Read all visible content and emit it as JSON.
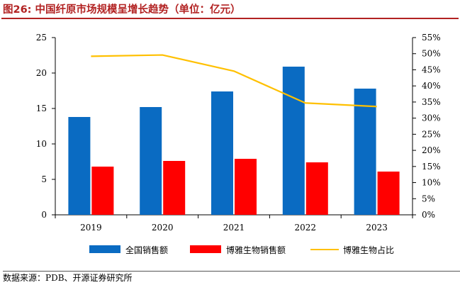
{
  "header": {
    "figure_label": "图26:",
    "title_text": "中国纤原市场规模呈增长趋势（单位：亿元）"
  },
  "source_note": "数据来源：PDB、开源证券研究所",
  "chart_data": {
    "type": "bar",
    "title": "中国纤原市场规模呈增长趋势（单位：亿元）",
    "categories": [
      "2019",
      "2020",
      "2021",
      "2022",
      "2023"
    ],
    "series": [
      {
        "name": "全国销售额",
        "type": "bar",
        "axis": "left",
        "color": "#0a6bc2",
        "values": [
          13.8,
          15.2,
          17.4,
          20.9,
          17.8
        ]
      },
      {
        "name": "博雅生物销售额",
        "type": "bar",
        "axis": "left",
        "color": "#ff0000",
        "values": [
          6.8,
          7.6,
          7.9,
          7.4,
          6.1
        ]
      },
      {
        "name": "博雅生物占比",
        "type": "line",
        "axis": "right",
        "color": "#ffc000",
        "values": [
          49.2,
          49.6,
          44.6,
          34.7,
          33.6
        ]
      }
    ],
    "y_left": {
      "min": 0,
      "max": 25,
      "step": 5,
      "ticks": [
        "0",
        "5",
        "10",
        "15",
        "20",
        "25"
      ]
    },
    "y_right": {
      "min": 0,
      "max": 55,
      "step": 5,
      "ticks": [
        "0%",
        "5%",
        "10%",
        "15%",
        "20%",
        "25%",
        "30%",
        "35%",
        "40%",
        "45%",
        "50%",
        "55%"
      ]
    },
    "grid": false,
    "legend_position": "bottom"
  }
}
